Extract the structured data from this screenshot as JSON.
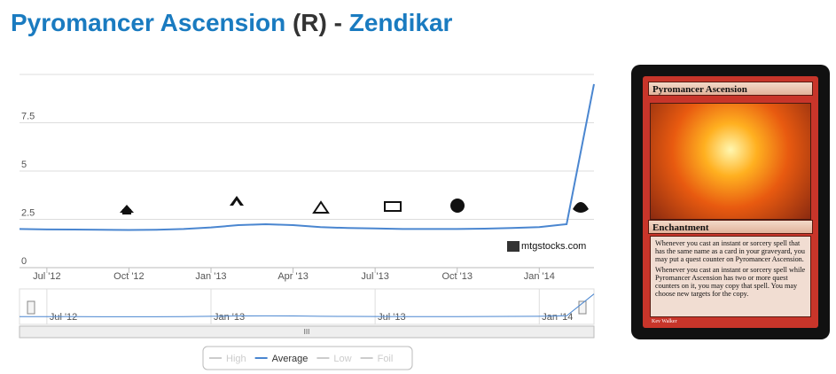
{
  "header": {
    "name": "Pyromancer Ascension",
    "rarity": "(R)",
    "separator": "-",
    "set": "Zendikar"
  },
  "chart_data": {
    "type": "line",
    "x": [
      "2012-06",
      "2012-07",
      "2012-08",
      "2012-09",
      "2012-10",
      "2012-11",
      "2012-12",
      "2013-01",
      "2013-02",
      "2013-03",
      "2013-04",
      "2013-05",
      "2013-06",
      "2013-07",
      "2013-08",
      "2013-09",
      "2013-10",
      "2013-11",
      "2013-12",
      "2014-01",
      "2014-02",
      "2014-03"
    ],
    "series": [
      {
        "name": "High",
        "color": "#cccccc",
        "hidden": true
      },
      {
        "name": "Average",
        "color": "#4a86d0",
        "values": [
          2.0,
          1.98,
          1.97,
          1.96,
          1.95,
          1.96,
          2.0,
          2.08,
          2.2,
          2.25,
          2.2,
          2.1,
          2.05,
          2.03,
          2.0,
          2.0,
          2.0,
          2.02,
          2.05,
          2.1,
          2.25,
          9.5
        ]
      },
      {
        "name": "Low",
        "color": "#cccccc",
        "hidden": true
      },
      {
        "name": "Foil",
        "color": "#cccccc",
        "hidden": true
      }
    ],
    "xlim": [
      "2012-06",
      "2014-03"
    ],
    "xticks": [
      {
        "value": "2012-07",
        "label": "Jul '12"
      },
      {
        "value": "2012-10",
        "label": "Oct '12"
      },
      {
        "value": "2013-01",
        "label": "Jan '13"
      },
      {
        "value": "2013-04",
        "label": "Apr '13"
      },
      {
        "value": "2013-07",
        "label": "Jul '13"
      },
      {
        "value": "2013-10",
        "label": "Oct '13"
      },
      {
        "value": "2014-01",
        "label": "Jan '14"
      }
    ],
    "ylim": [
      0,
      10
    ],
    "yticks": [
      0,
      2.5,
      5,
      7.5
    ],
    "grid": true,
    "watermark": "mtgstocks.com",
    "navigator_xticks": [
      {
        "value": "2012-07",
        "label": "Jul '12"
      },
      {
        "value": "2013-01",
        "label": "Jan '13"
      },
      {
        "value": "2013-07",
        "label": "Jul '13"
      },
      {
        "value": "2014-01",
        "label": "Jan '14"
      }
    ]
  },
  "card": {
    "name": "Pyromancer Ascension",
    "type_line": "Enchantment",
    "rules": [
      "Whenever you cast an instant or sorcery spell that has the same name as a card in your graveyard, you may put a quest counter on Pyromancer Ascension.",
      "Whenever you cast an instant or sorcery spell while Pyromancer Ascension has two or more quest counters on it, you may copy that spell. You may choose new targets for the copy."
    ],
    "artist": "Kev Walker"
  }
}
